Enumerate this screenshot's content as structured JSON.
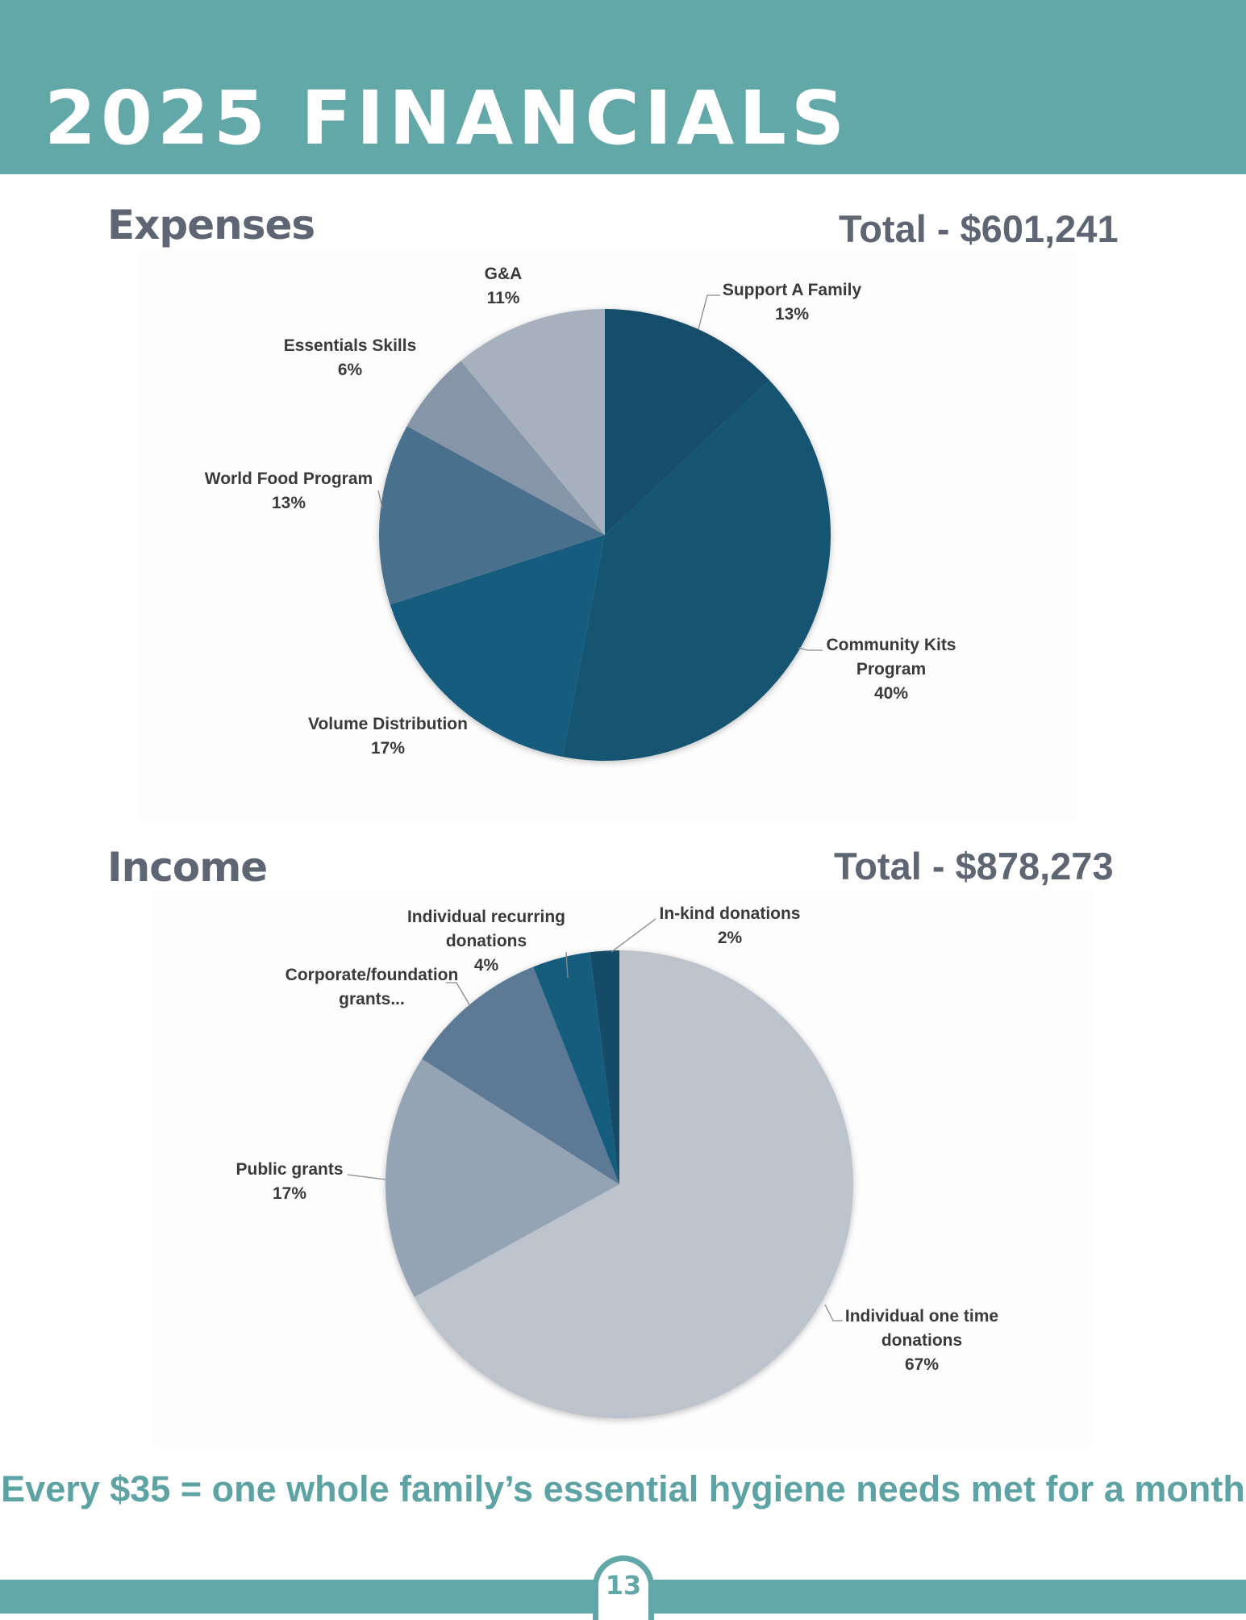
{
  "header": {
    "title": "2025 FINANCIALS"
  },
  "expenses": {
    "heading": "Expenses",
    "total": "Total - $601,241"
  },
  "income": {
    "heading": "Income",
    "total": "Total - $878,273"
  },
  "tagline": "Every $35 = one whole family’s essential hygiene needs met for a month",
  "page_number": "13",
  "chart_data": [
    {
      "type": "pie",
      "title": "Expenses",
      "slices": [
        {
          "label": [
            "Support A Family"
          ],
          "pct_label": "13%",
          "value": 13,
          "color": "#124d6b"
        },
        {
          "label": [
            "Community Kits",
            "Program"
          ],
          "pct_label": "40%",
          "value": 40,
          "color": "#135472"
        },
        {
          "label": [
            "Volume Distribution"
          ],
          "pct_label": "17%",
          "value": 17,
          "color": "#165b7e"
        },
        {
          "label": [
            "World Food Program"
          ],
          "pct_label": "13%",
          "value": 13,
          "color": "#4a708d"
        },
        {
          "label": [
            "Essentials Skills"
          ],
          "pct_label": "6%",
          "value": 6,
          "color": "#8696a8"
        },
        {
          "label": [
            "G&A"
          ],
          "pct_label": "11%",
          "value": 11,
          "color": "#a7b1bd"
        }
      ]
    },
    {
      "type": "pie",
      "title": "Income",
      "slices": [
        {
          "label": [
            "Individual one time",
            "donations"
          ],
          "pct_label": "67%",
          "value": 67,
          "color": "#bcc3cc"
        },
        {
          "label": [
            "Public grants"
          ],
          "pct_label": "17%",
          "value": 17,
          "color": "#95a4b4"
        },
        {
          "label": [
            "Corporate/foundation",
            "grants..."
          ],
          "pct_label": "",
          "value": 10,
          "color": "#5c7a95"
        },
        {
          "label": [
            "Individual recurring",
            "donations"
          ],
          "pct_label": "4%",
          "value": 4,
          "color": "#175b7d"
        },
        {
          "label": [
            "In-kind donations"
          ],
          "pct_label": "2%",
          "value": 2,
          "color": "#134c67"
        }
      ]
    }
  ],
  "colors": {
    "teal": "#62a8a8",
    "heading_gray": "#5f6673"
  }
}
